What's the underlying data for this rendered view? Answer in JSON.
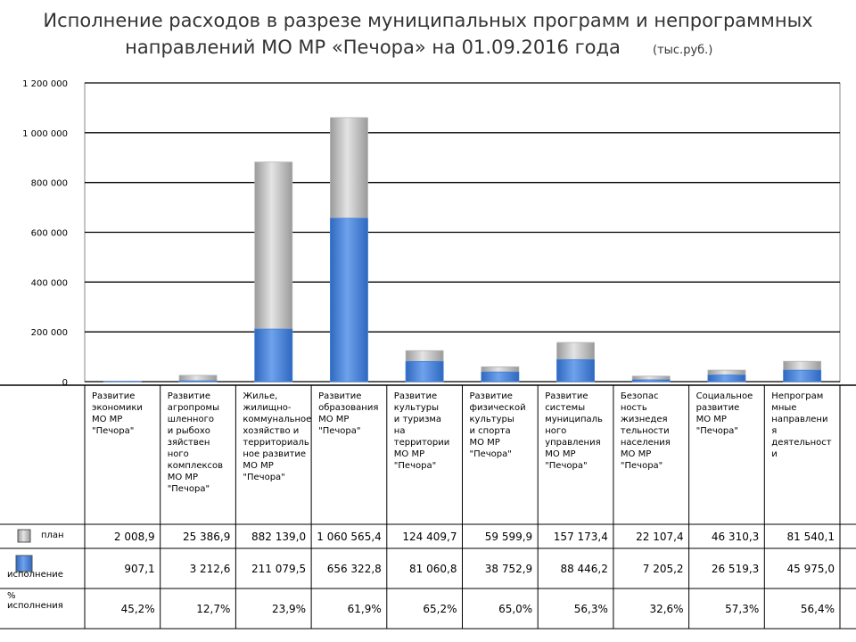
{
  "chart_data": {
    "type": "bar",
    "title_lines": [
      "Исполнение расходов в разрезе муниципальных программ и непрограммных",
      "направлений МО МР «Печора» на 01.09.2016 года"
    ],
    "unit": "(тыс.руб.)",
    "categories": [
      "Развитие\nэкономики\nМО МР\n\"Печора\"",
      "Развитие\nагропромы\nшленного\nи рыбохо\nзяйствен\nного\nкомплексов\nМО МР\n\"Печора\"",
      "Жилье,\nжилищно-\nкоммунальное\nхозяйство и\nтерриториаль\nное развитие\nМО МР\n\"Печора\"",
      "Развитие\nобразования\nМО МР\n\"Печора\"",
      "Развитие\nкультуры\nи туризма\nна\nтерритории\nМО МР\n\"Печора\"",
      "Развитие\nфизической\nкультуры\nи спорта\nМО МР\n\"Печора\"",
      "Развитие\nсистемы\nмуниципаль\nного\nуправления\nМО МР\n\"Печора\"",
      "Безопас\nность\nжизнедея\nтельности\nнаселения\nМО МР\n\"Печора\"",
      "Социальное\nразвитие\nМО МР\n\"Печора\"",
      "Непрограм\nмные\nнаправлени\nя\nдеятельност\nи"
    ],
    "series": [
      {
        "name": "план",
        "color": "#b4b4b4",
        "values": [
          2008.9,
          25386.9,
          882139.0,
          1060565.4,
          124409.7,
          59599.9,
          157173.4,
          22107.4,
          46310.3,
          81540.1
        ],
        "value_labels": [
          "2 008,9",
          "25 386,9",
          "882 139,0",
          "1 060 565,4",
          "124 409,7",
          "59 599,9",
          "157 173,4",
          "22 107,4",
          "46 310,3",
          "81 540,1"
        ]
      },
      {
        "name": "исполнение",
        "color": "#3f7fd6",
        "values": [
          907.1,
          3212.6,
          211079.5,
          656322.8,
          81060.8,
          38752.9,
          88446.2,
          7205.2,
          26519.3,
          45975.0
        ],
        "value_labels": [
          "907,1",
          "3 212,6",
          "211 079,5",
          "656 322,8",
          "81 060,8",
          "38 752,9",
          "88 446,2",
          "7 205,2",
          "26 519,3",
          "45 975,0"
        ]
      },
      {
        "name": "%\nисполнения",
        "values": [
          45.2,
          12.7,
          23.9,
          61.9,
          65.2,
          65.0,
          56.3,
          32.6,
          57.3,
          56.4
        ],
        "value_labels": [
          "45,2%",
          "12,7%",
          "23,9%",
          "61,9%",
          "65,2%",
          "65,0%",
          "56,3%",
          "32,6%",
          "57,3%",
          "56,4%"
        ]
      }
    ],
    "ylim": [
      0,
      1200000
    ],
    "yticks": [
      0,
      {
        "value": 200000,
        "label": "200 000"
      },
      {
        "value": 400000,
        "label": "400 000"
      },
      {
        "value": 600000,
        "label": "600 000"
      },
      {
        "value": 800000,
        "label": "800 000"
      },
      {
        "value": 1000000,
        "label": "1 000 000"
      },
      {
        "value": 1200000,
        "label": "1 200 000"
      }
    ],
    "grid": true
  }
}
